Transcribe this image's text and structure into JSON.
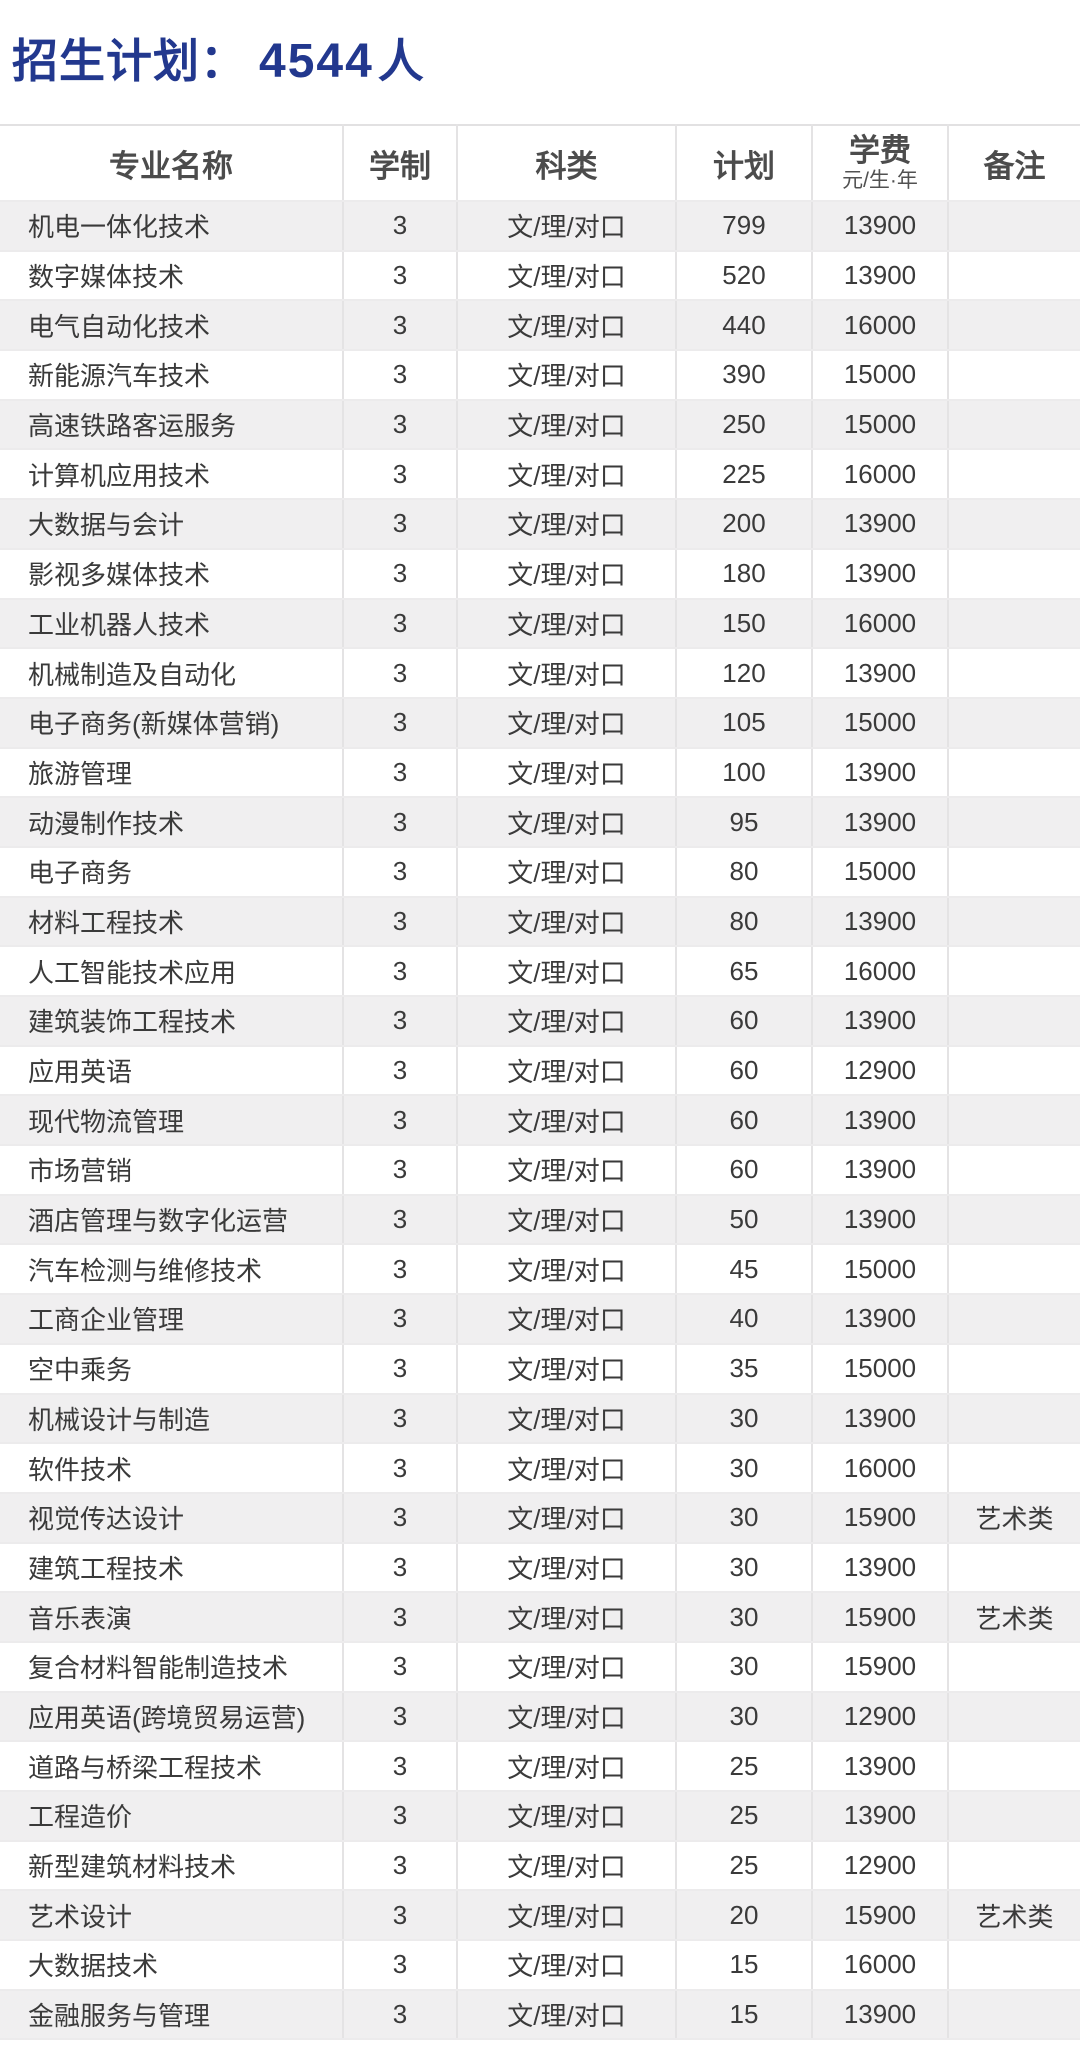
{
  "page": {
    "title_label": "招生计划：",
    "title_count": "4544",
    "title_unit": "人"
  },
  "colors": {
    "accent_blue": "#22388e",
    "stripe_gray": "#f0eff0",
    "border_gray": "#e4e3e4",
    "header_text": "#4c4c4c",
    "cell_text": "#3a3a3a"
  },
  "table": {
    "header": {
      "major": "专业名称",
      "years": "学制",
      "category": "科类",
      "plan": "计划",
      "tuition": "学费",
      "tuition_unit": "元/生·年",
      "note": "备注"
    },
    "rows": [
      {
        "major": "机电一体化技术",
        "years": "3",
        "category": "文/理/对口",
        "plan": "799",
        "tuition": "13900",
        "note": ""
      },
      {
        "major": "数字媒体技术",
        "years": "3",
        "category": "文/理/对口",
        "plan": "520",
        "tuition": "13900",
        "note": ""
      },
      {
        "major": "电气自动化技术",
        "years": "3",
        "category": "文/理/对口",
        "plan": "440",
        "tuition": "16000",
        "note": ""
      },
      {
        "major": "新能源汽车技术",
        "years": "3",
        "category": "文/理/对口",
        "plan": "390",
        "tuition": "15000",
        "note": ""
      },
      {
        "major": "高速铁路客运服务",
        "years": "3",
        "category": "文/理/对口",
        "plan": "250",
        "tuition": "15000",
        "note": ""
      },
      {
        "major": "计算机应用技术",
        "years": "3",
        "category": "文/理/对口",
        "plan": "225",
        "tuition": "16000",
        "note": ""
      },
      {
        "major": "大数据与会计",
        "years": "3",
        "category": "文/理/对口",
        "plan": "200",
        "tuition": "13900",
        "note": ""
      },
      {
        "major": "影视多媒体技术",
        "years": "3",
        "category": "文/理/对口",
        "plan": "180",
        "tuition": "13900",
        "note": ""
      },
      {
        "major": "工业机器人技术",
        "years": "3",
        "category": "文/理/对口",
        "plan": "150",
        "tuition": "16000",
        "note": ""
      },
      {
        "major": "机械制造及自动化",
        "years": "3",
        "category": "文/理/对口",
        "plan": "120",
        "tuition": "13900",
        "note": ""
      },
      {
        "major": "电子商务(新媒体营销)",
        "years": "3",
        "category": "文/理/对口",
        "plan": "105",
        "tuition": "15000",
        "note": ""
      },
      {
        "major": "旅游管理",
        "years": "3",
        "category": "文/理/对口",
        "plan": "100",
        "tuition": "13900",
        "note": ""
      },
      {
        "major": "动漫制作技术",
        "years": "3",
        "category": "文/理/对口",
        "plan": "95",
        "tuition": "13900",
        "note": ""
      },
      {
        "major": "电子商务",
        "years": "3",
        "category": "文/理/对口",
        "plan": "80",
        "tuition": "15000",
        "note": ""
      },
      {
        "major": "材料工程技术",
        "years": "3",
        "category": "文/理/对口",
        "plan": "80",
        "tuition": "13900",
        "note": ""
      },
      {
        "major": "人工智能技术应用",
        "years": "3",
        "category": "文/理/对口",
        "plan": "65",
        "tuition": "16000",
        "note": ""
      },
      {
        "major": "建筑装饰工程技术",
        "years": "3",
        "category": "文/理/对口",
        "plan": "60",
        "tuition": "13900",
        "note": ""
      },
      {
        "major": "应用英语",
        "years": "3",
        "category": "文/理/对口",
        "plan": "60",
        "tuition": "12900",
        "note": ""
      },
      {
        "major": "现代物流管理",
        "years": "3",
        "category": "文/理/对口",
        "plan": "60",
        "tuition": "13900",
        "note": ""
      },
      {
        "major": "市场营销",
        "years": "3",
        "category": "文/理/对口",
        "plan": "60",
        "tuition": "13900",
        "note": ""
      },
      {
        "major": "酒店管理与数字化运营",
        "years": "3",
        "category": "文/理/对口",
        "plan": "50",
        "tuition": "13900",
        "note": ""
      },
      {
        "major": "汽车检测与维修技术",
        "years": "3",
        "category": "文/理/对口",
        "plan": "45",
        "tuition": "15000",
        "note": ""
      },
      {
        "major": "工商企业管理",
        "years": "3",
        "category": "文/理/对口",
        "plan": "40",
        "tuition": "13900",
        "note": ""
      },
      {
        "major": "空中乘务",
        "years": "3",
        "category": "文/理/对口",
        "plan": "35",
        "tuition": "15000",
        "note": ""
      },
      {
        "major": "机械设计与制造",
        "years": "3",
        "category": "文/理/对口",
        "plan": "30",
        "tuition": "13900",
        "note": ""
      },
      {
        "major": "软件技术",
        "years": "3",
        "category": "文/理/对口",
        "plan": "30",
        "tuition": "16000",
        "note": ""
      },
      {
        "major": "视觉传达设计",
        "years": "3",
        "category": "文/理/对口",
        "plan": "30",
        "tuition": "15900",
        "note": "艺术类"
      },
      {
        "major": "建筑工程技术",
        "years": "3",
        "category": "文/理/对口",
        "plan": "30",
        "tuition": "13900",
        "note": ""
      },
      {
        "major": "音乐表演",
        "years": "3",
        "category": "文/理/对口",
        "plan": "30",
        "tuition": "15900",
        "note": "艺术类"
      },
      {
        "major": "复合材料智能制造技术",
        "years": "3",
        "category": "文/理/对口",
        "plan": "30",
        "tuition": "15900",
        "note": ""
      },
      {
        "major": "应用英语(跨境贸易运营)",
        "years": "3",
        "category": "文/理/对口",
        "plan": "30",
        "tuition": "12900",
        "note": ""
      },
      {
        "major": "道路与桥梁工程技术",
        "years": "3",
        "category": "文/理/对口",
        "plan": "25",
        "tuition": "13900",
        "note": ""
      },
      {
        "major": "工程造价",
        "years": "3",
        "category": "文/理/对口",
        "plan": "25",
        "tuition": "13900",
        "note": ""
      },
      {
        "major": "新型建筑材料技术",
        "years": "3",
        "category": "文/理/对口",
        "plan": "25",
        "tuition": "12900",
        "note": ""
      },
      {
        "major": "艺术设计",
        "years": "3",
        "category": "文/理/对口",
        "plan": "20",
        "tuition": "15900",
        "note": "艺术类"
      },
      {
        "major": "大数据技术",
        "years": "3",
        "category": "文/理/对口",
        "plan": "15",
        "tuition": "16000",
        "note": ""
      },
      {
        "major": "金融服务与管理",
        "years": "3",
        "category": "文/理/对口",
        "plan": "15",
        "tuition": "13900",
        "note": ""
      }
    ]
  }
}
